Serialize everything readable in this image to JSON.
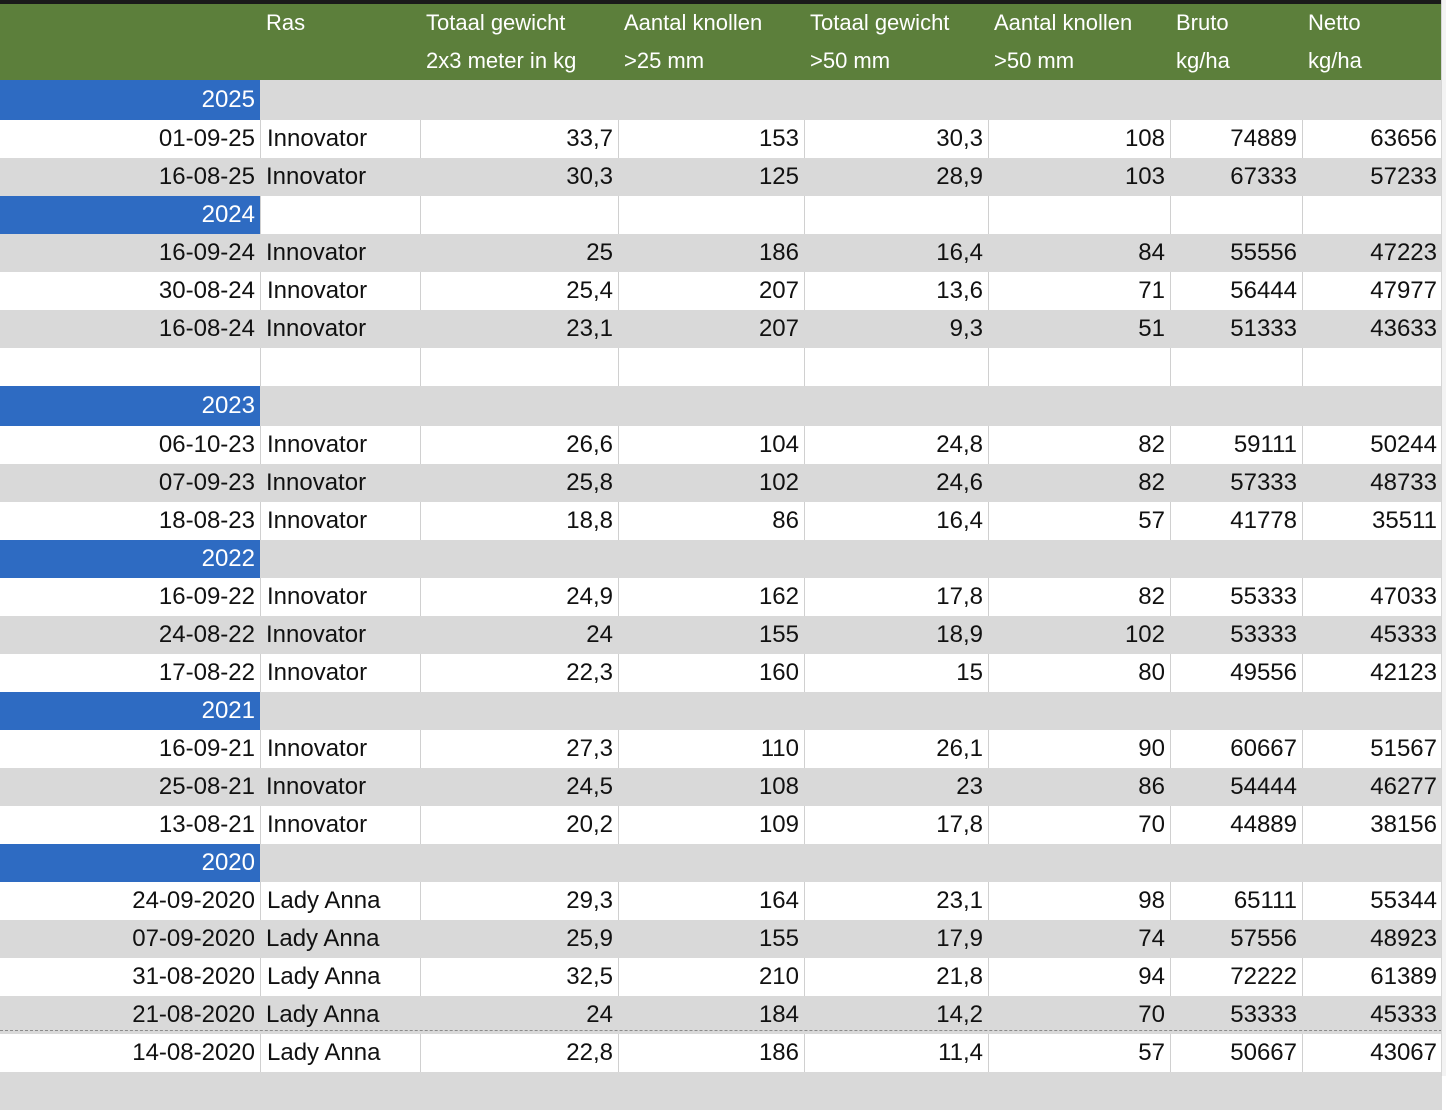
{
  "headers": {
    "ras": [
      "Ras",
      ""
    ],
    "totaal_gewicht_25": [
      "Totaal gewicht",
      "2x3 meter in kg"
    ],
    "aantal_knollen_25": [
      "Aantal knollen",
      ">25 mm"
    ],
    "totaal_gewicht_50": [
      "Totaal gewicht",
      ">50 mm"
    ],
    "aantal_knollen_50": [
      "Aantal knollen",
      ">50 mm"
    ],
    "bruto": [
      "Bruto",
      "kg/ha"
    ],
    "netto": [
      "Netto",
      "kg/ha"
    ]
  },
  "rows": [
    {
      "type": "year",
      "label": "2025",
      "shade": "g"
    },
    {
      "type": "data",
      "shade": "w",
      "cells": [
        "01-09-25",
        "Innovator",
        "33,7",
        "153",
        "30,3",
        "108",
        "74889",
        "63656"
      ]
    },
    {
      "type": "data",
      "shade": "g",
      "cells": [
        "16-08-25",
        "Innovator",
        "30,3",
        "125",
        "28,9",
        "103",
        "67333",
        "57233"
      ]
    },
    {
      "type": "year",
      "label": "2024",
      "shade": "w"
    },
    {
      "type": "data",
      "shade": "g",
      "cells": [
        "16-09-24",
        "Innovator",
        "25",
        "186",
        "16,4",
        "84",
        "55556",
        "47223"
      ]
    },
    {
      "type": "data",
      "shade": "w",
      "cells": [
        "30-08-24",
        "Innovator",
        "25,4",
        "207",
        "13,6",
        "71",
        "56444",
        "47977"
      ]
    },
    {
      "type": "data",
      "shade": "g",
      "cells": [
        "16-08-24",
        "Innovator",
        "23,1",
        "207",
        "9,3",
        "51",
        "51333",
        "43633"
      ]
    },
    {
      "type": "empty",
      "shade": "w"
    },
    {
      "type": "year",
      "label": "2023",
      "shade": "g"
    },
    {
      "type": "data",
      "shade": "w",
      "cells": [
        "06-10-23",
        "Innovator",
        "26,6",
        "104",
        "24,8",
        "82",
        "59111",
        "50244"
      ]
    },
    {
      "type": "data",
      "shade": "g",
      "cells": [
        "07-09-23",
        "Innovator",
        "25,8",
        "102",
        "24,6",
        "82",
        "57333",
        "48733"
      ]
    },
    {
      "type": "data",
      "shade": "w",
      "cells": [
        "18-08-23",
        "Innovator",
        "18,8",
        "86",
        "16,4",
        "57",
        "41778",
        "35511"
      ]
    },
    {
      "type": "year",
      "label": "2022",
      "shade": "g"
    },
    {
      "type": "data",
      "shade": "w",
      "cells": [
        "16-09-22",
        "Innovator",
        "24,9",
        "162",
        "17,8",
        "82",
        "55333",
        "47033"
      ]
    },
    {
      "type": "data",
      "shade": "g",
      "cells": [
        "24-08-22",
        "Innovator",
        "24",
        "155",
        "18,9",
        "102",
        "53333",
        "45333"
      ]
    },
    {
      "type": "data",
      "shade": "w",
      "cells": [
        "17-08-22",
        "Innovator",
        "22,3",
        "160",
        "15",
        "80",
        "49556",
        "42123"
      ]
    },
    {
      "type": "year",
      "label": "2021",
      "shade": "g"
    },
    {
      "type": "data",
      "shade": "w",
      "cells": [
        "16-09-21",
        "Innovator",
        "27,3",
        "110",
        "26,1",
        "90",
        "60667",
        "51567"
      ]
    },
    {
      "type": "data",
      "shade": "g",
      "cells": [
        "25-08-21",
        "Innovator",
        "24,5",
        "108",
        "23",
        "86",
        "54444",
        "46277"
      ]
    },
    {
      "type": "data",
      "shade": "w",
      "cells": [
        "13-08-21",
        "Innovator",
        "20,2",
        "109",
        "17,8",
        "70",
        "44889",
        "38156"
      ]
    },
    {
      "type": "year",
      "label": "2020",
      "shade": "g"
    },
    {
      "type": "data",
      "shade": "w",
      "cells": [
        "24-09-2020",
        "Lady Anna",
        "29,3",
        "164",
        "23,1",
        "98",
        "65111",
        "55344"
      ]
    },
    {
      "type": "data",
      "shade": "g",
      "cells": [
        "07-09-2020",
        "Lady Anna",
        "25,9",
        "155",
        "17,9",
        "74",
        "57556",
        "48923"
      ]
    },
    {
      "type": "data",
      "shade": "w",
      "cells": [
        "31-08-2020",
        "Lady Anna",
        "32,5",
        "210",
        "21,8",
        "94",
        "72222",
        "61389"
      ]
    },
    {
      "type": "data",
      "shade": "g",
      "cells": [
        "21-08-2020",
        "Lady Anna",
        "24",
        "184",
        "14,2",
        "70",
        "53333",
        "45333"
      ]
    },
    {
      "type": "data",
      "shade": "w",
      "cells": [
        "14-08-2020",
        "Lady Anna",
        "22,8",
        "186",
        "11,4",
        "57",
        "50667",
        "43067"
      ]
    },
    {
      "type": "empty",
      "shade": "g"
    }
  ]
}
